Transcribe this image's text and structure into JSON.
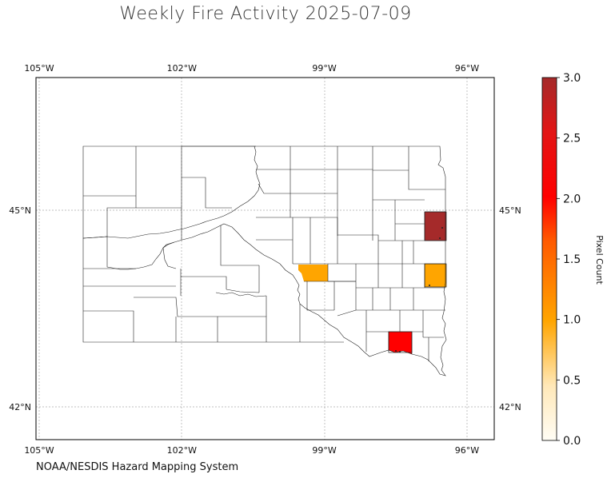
{
  "map": {
    "title": "Weekly Fire Activity 2025-07-09",
    "credit": "NOAA/NESDIS Hazard Mapping System",
    "extent": {
      "lon": [
        -105.1,
        -95.45
      ],
      "lat": [
        41.35,
        48.75
      ]
    },
    "lon_ticks": [
      {
        "value": -105,
        "label": "105°W"
      },
      {
        "value": -102,
        "label": "102°W"
      },
      {
        "value": -99,
        "label": "99°W"
      },
      {
        "value": -96,
        "label": "96°W"
      }
    ],
    "lat_ticks": [
      {
        "value": 45,
        "label": "45°N"
      },
      {
        "value": 42,
        "label": "42°N"
      }
    ],
    "gridlines": true,
    "colors": {
      "zero": "#ffffff",
      "low": "#ffeec8",
      "mid": "#ffa500",
      "high": "#ff0000",
      "max": "#a52a2a",
      "grid": "#aaaaaa",
      "border": "#000000"
    },
    "colorbar": {
      "label": "Pixel Count",
      "range": [
        0,
        3
      ],
      "ticks": [
        {
          "value": 0,
          "label": "0.0"
        },
        {
          "value": 0.5,
          "label": "0.5"
        },
        {
          "value": 1,
          "label": "1.0"
        },
        {
          "value": 1.5,
          "label": "1.5"
        },
        {
          "value": 2,
          "label": "2.0"
        },
        {
          "value": 2.5,
          "label": "2.5"
        },
        {
          "value": 3,
          "label": "3.0"
        }
      ]
    },
    "region": "South Dakota counties",
    "highlighted_counties": [
      {
        "id": "east-ne",
        "value": 3,
        "color": "#a52a2a"
      },
      {
        "id": "east-mid",
        "value": 1,
        "color": "#ffa500"
      },
      {
        "id": "central",
        "value": 1,
        "color": "#ffa500"
      },
      {
        "id": "south",
        "value": 2,
        "color": "#ff0000"
      }
    ]
  }
}
